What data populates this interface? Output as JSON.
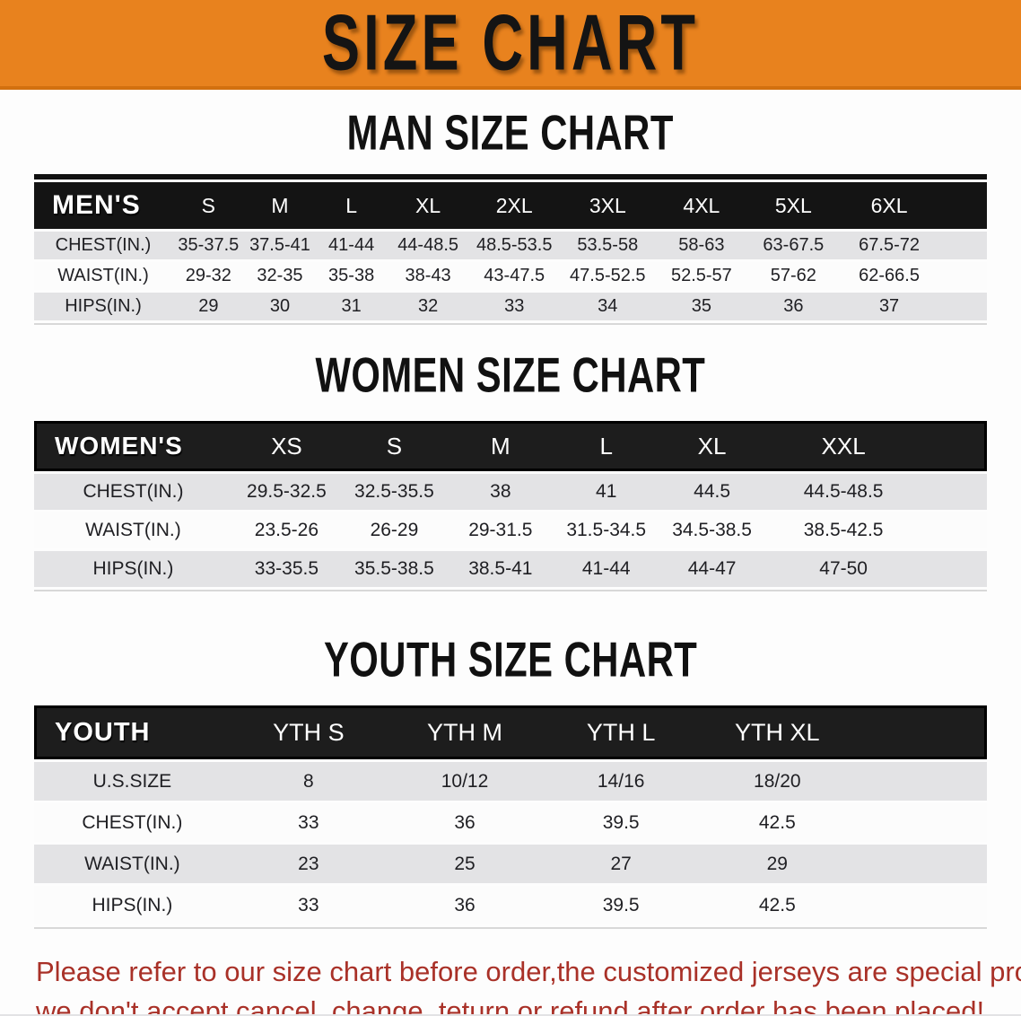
{
  "banner": {
    "title": "SIZE CHART",
    "bg_color": "#E8821E",
    "text_color": "#141414"
  },
  "sections": [
    {
      "id": "men",
      "heading": "MAN SIZE CHART",
      "table": {
        "label": "MEN'S",
        "columns": [
          "S",
          "M",
          "L",
          "XL",
          "2XL",
          "3XL",
          "4XL",
          "5XL",
          "6XL"
        ],
        "rows": [
          {
            "label": "CHEST(IN.)",
            "values": [
              "35-37.5",
              "37.5-41",
              "41-44",
              "44-48.5",
              "48.5-53.5",
              "53.5-58",
              "58-63",
              "63-67.5",
              "67.5-72"
            ]
          },
          {
            "label": "WAIST(IN.)",
            "values": [
              "29-32",
              "32-35",
              "35-38",
              "38-43",
              "43-47.5",
              "47.5-52.5",
              "52.5-57",
              "57-62",
              "62-66.5"
            ]
          },
          {
            "label": "HIPS(IN.)",
            "values": [
              "29",
              "30",
              "31",
              "32",
              "33",
              "34",
              "35",
              "36",
              "37"
            ]
          }
        ]
      }
    },
    {
      "id": "women",
      "heading": "WOMEN SIZE CHART",
      "table": {
        "label": "WOMEN'S",
        "columns": [
          "XS",
          "S",
          "M",
          "L",
          "XL",
          "XXL"
        ],
        "rows": [
          {
            "label": "CHEST(IN.)",
            "values": [
              "29.5-32.5",
              "32.5-35.5",
              "38",
              "41",
              "44.5",
              "44.5-48.5"
            ]
          },
          {
            "label": "WAIST(IN.)",
            "values": [
              "23.5-26",
              "26-29",
              "29-31.5",
              "31.5-34.5",
              "34.5-38.5",
              "38.5-42.5"
            ]
          },
          {
            "label": "HIPS(IN.)",
            "values": [
              "33-35.5",
              "35.5-38.5",
              "38.5-41",
              "41-44",
              "44-47",
              "47-50"
            ]
          }
        ]
      }
    },
    {
      "id": "youth",
      "heading": "YOUTH SIZE CHART",
      "table": {
        "label": "YOUTH",
        "columns": [
          "YTH S",
          "YTH M",
          "YTH L",
          "YTH XL"
        ],
        "rows": [
          {
            "label": "U.S.SIZE",
            "values": [
              "8",
              "10/12",
              "14/16",
              "18/20"
            ]
          },
          {
            "label": "CHEST(IN.)",
            "values": [
              "33",
              "36",
              "39.5",
              "42.5"
            ]
          },
          {
            "label": "WAIST(IN.)",
            "values": [
              "23",
              "25",
              "27",
              "29"
            ]
          },
          {
            "label": "HIPS(IN.)",
            "values": [
              "33",
              "36",
              "39.5",
              "42.5"
            ]
          }
        ]
      }
    }
  ],
  "disclaimer": {
    "line1": "Please refer to our size chart before order,the customized jerseys are special products,",
    "line2": "we don't accept cancel, change, teturn or refund after order has been placed!",
    "color": "#A93128"
  },
  "style_tokens": {
    "header_band_color": "#161616",
    "gray_row_color": "#E3E3E5",
    "white_row_color": "#FCFCFC"
  }
}
